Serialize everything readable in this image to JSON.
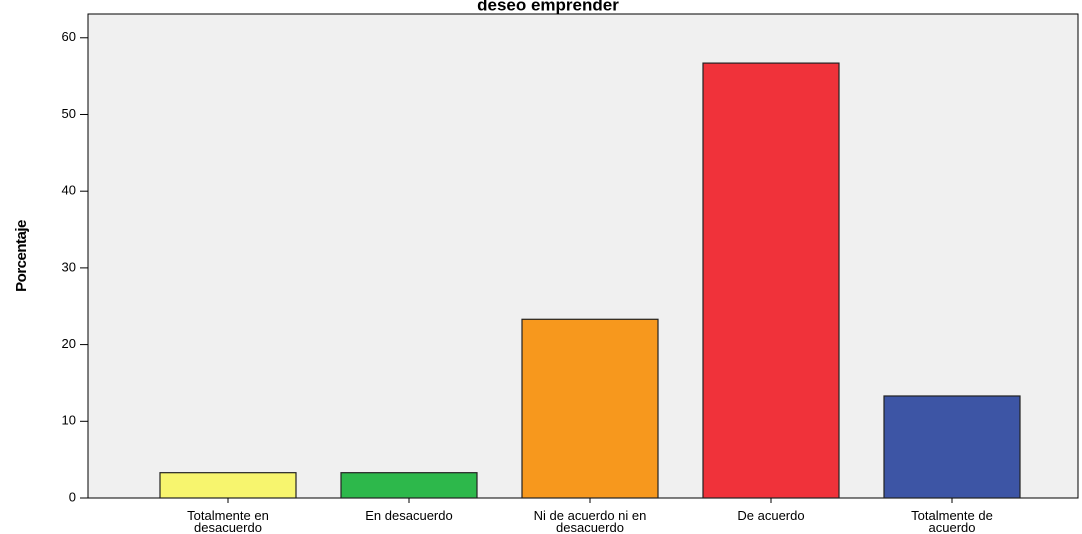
{
  "chart_data": {
    "type": "bar",
    "title": "deseo emprender",
    "y_label": "Porcentaje",
    "categories": [
      "Totalmente en desacuerdo",
      "En desacuerdo",
      "Ni de acuerdo ni en desacuerdo",
      "De acuerdo",
      "Totalmente de acuerdo"
    ],
    "values": [
      3.3,
      3.3,
      23.3,
      56.7,
      13.3
    ],
    "colors": [
      "#f7f56e",
      "#2db84b",
      "#f7981d",
      "#f0323a",
      "#3d55a5"
    ],
    "ylim": [
      0,
      63.1
    ],
    "yticks": [
      0,
      10,
      20,
      30,
      40,
      50,
      60
    ],
    "grid": false
  }
}
